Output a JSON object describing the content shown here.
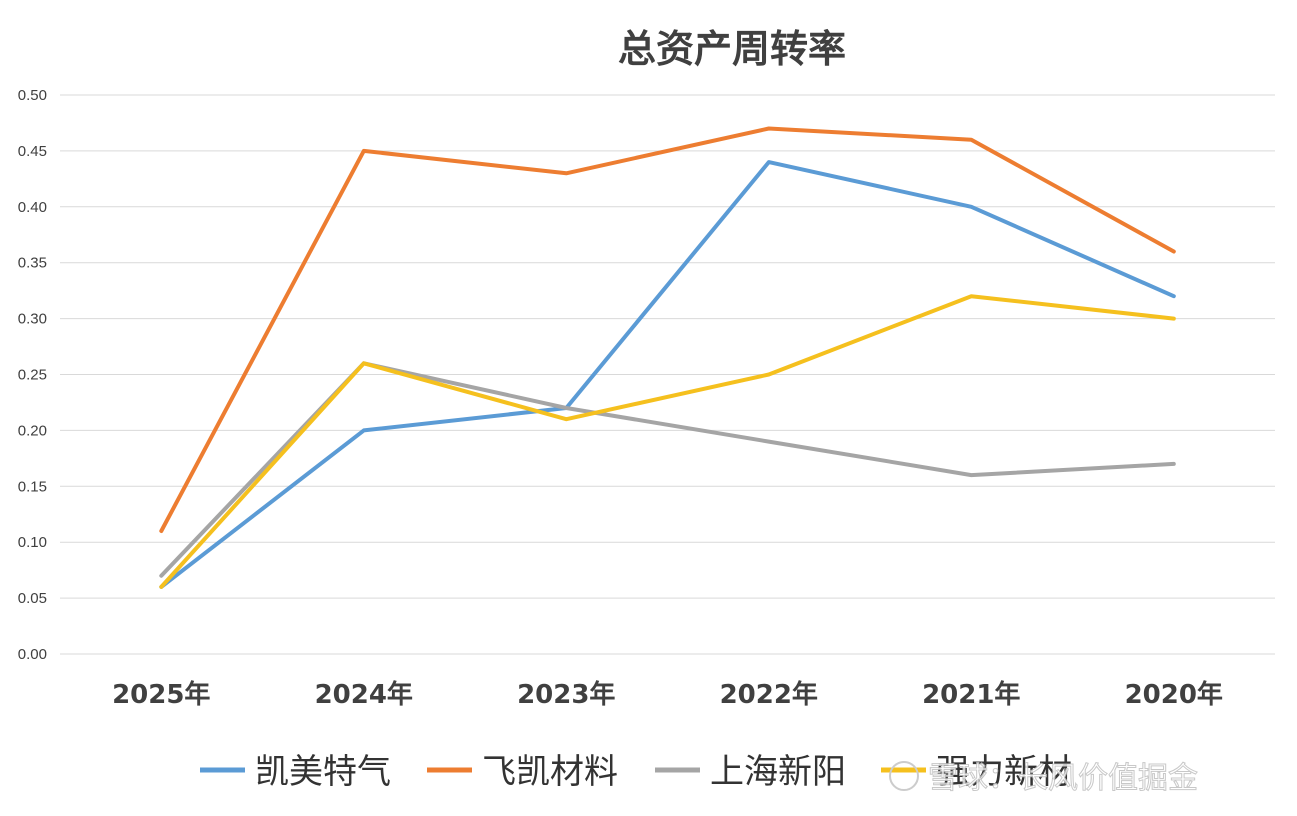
{
  "chart_data": {
    "type": "line",
    "title": "总资产周转率",
    "categories": [
      "2025年",
      "2024年",
      "2023年",
      "2022年",
      "2021年",
      "2020年"
    ],
    "ylim": [
      0,
      0.5
    ],
    "yticks": [
      "0.00",
      "0.05",
      "0.10",
      "0.15",
      "0.20",
      "0.25",
      "0.30",
      "0.35",
      "0.40",
      "0.45",
      "0.50"
    ],
    "grid": true,
    "legend_position": "bottom",
    "series": [
      {
        "name": "凯美特气",
        "color": "#5b9bd5",
        "values": [
          0.06,
          0.2,
          0.22,
          0.44,
          0.4,
          0.32
        ]
      },
      {
        "name": "飞凯材料",
        "color": "#ed7d31",
        "values": [
          0.11,
          0.45,
          0.43,
          0.47,
          0.46,
          0.36
        ]
      },
      {
        "name": "上海新阳",
        "color": "#a5a5a5",
        "values": [
          0.07,
          0.26,
          0.22,
          0.19,
          0.16,
          0.17
        ]
      },
      {
        "name": "强力新材",
        "color": "#f5c01e",
        "values": [
          0.06,
          0.26,
          0.21,
          0.25,
          0.32,
          0.3
        ]
      }
    ]
  },
  "watermark": "雪球：长风价值掘金"
}
